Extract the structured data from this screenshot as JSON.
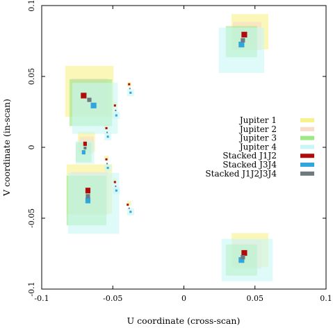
{
  "chart_data": {
    "type": "scatter",
    "title": "",
    "xlabel": "U coordinate (cross-scan)",
    "ylabel": "V coordinate (in-scan)",
    "xlim": [
      -0.1,
      0.1
    ],
    "ylim": [
      -0.1,
      0.1
    ],
    "xticks": [
      -0.1,
      -0.05,
      0,
      0.05,
      0.1
    ],
    "yticks": [
      -0.1,
      -0.05,
      0,
      0.05,
      0.1
    ],
    "xtick_labels": [
      "-0.1",
      "-0.05",
      "0",
      "0.05",
      "0.1"
    ],
    "ytick_labels": [
      "-0.1",
      "-0.05",
      "0",
      "0.05",
      "0.1"
    ],
    "grid": false,
    "legend_position": "right",
    "series": [
      {
        "name": "Jupiter 1",
        "color": "#f7f28c",
        "marker": "square-region",
        "points": [
          {
            "x": -0.0665,
            "y": 0.0395,
            "w": 0.034,
            "h": 0.036
          },
          {
            "x": -0.0685,
            "y": 0.004,
            "w": 0.012,
            "h": 0.014
          },
          {
            "x": -0.0665,
            "y": -0.0295,
            "w": 0.032,
            "h": 0.035
          },
          {
            "x": 0.0465,
            "y": 0.0815,
            "w": 0.026,
            "h": 0.025
          },
          {
            "x": 0.0465,
            "y": -0.0725,
            "w": 0.026,
            "h": 0.024
          },
          {
            "x": -0.0385,
            "y": 0.0445,
            "w": 0.003,
            "h": 0.003
          },
          {
            "x": -0.0485,
            "y": 0.0305,
            "w": 0.003,
            "h": 0.003
          },
          {
            "x": -0.0545,
            "y": 0.0145,
            "w": 0.003,
            "h": 0.003
          },
          {
            "x": -0.0545,
            "y": -0.0075,
            "w": 0.003,
            "h": 0.003
          },
          {
            "x": -0.0485,
            "y": -0.0235,
            "w": 0.003,
            "h": 0.003
          },
          {
            "x": -0.0385,
            "y": -0.0395,
            "w": 0.003,
            "h": 0.003
          }
        ]
      },
      {
        "name": "Jupiter 2",
        "color": "#f9dcc8",
        "marker": "square-region",
        "points": [
          {
            "x": -0.0665,
            "y": 0.0355,
            "w": 0.026,
            "h": 0.026
          },
          {
            "x": -0.0685,
            "y": 0.0015,
            "w": 0.01,
            "h": 0.012
          },
          {
            "x": -0.0665,
            "y": -0.0325,
            "w": 0.026,
            "h": 0.03
          },
          {
            "x": 0.0445,
            "y": 0.0785,
            "w": 0.02,
            "h": 0.02
          },
          {
            "x": 0.0445,
            "y": -0.0755,
            "w": 0.02,
            "h": 0.02
          }
        ]
      },
      {
        "name": "Jupiter 3",
        "color": "#9ee888",
        "marker": "square-region",
        "points": [
          {
            "x": -0.0655,
            "y": 0.0315,
            "w": 0.03,
            "h": 0.033
          },
          {
            "x": -0.0705,
            "y": -0.0035,
            "w": 0.011,
            "h": 0.014
          },
          {
            "x": -0.0685,
            "y": -0.0375,
            "w": 0.028,
            "h": 0.035
          },
          {
            "x": 0.0405,
            "y": 0.0745,
            "w": 0.022,
            "h": 0.022
          },
          {
            "x": 0.0405,
            "y": -0.0795,
            "w": 0.022,
            "h": 0.022
          }
        ]
      },
      {
        "name": "Jupiter 4",
        "color": "#c9f7f5",
        "marker": "square-region",
        "points": [
          {
            "x": -0.0625,
            "y": 0.0275,
            "w": 0.032,
            "h": 0.036
          },
          {
            "x": -0.0695,
            "y": -0.0035,
            "w": 0.013,
            "h": 0.016
          },
          {
            "x": -0.0635,
            "y": -0.0395,
            "w": 0.036,
            "h": 0.043
          },
          {
            "x": 0.0405,
            "y": 0.0685,
            "w": 0.032,
            "h": 0.032
          },
          {
            "x": 0.0445,
            "y": -0.0795,
            "w": 0.036,
            "h": 0.03
          },
          {
            "x": -0.0375,
            "y": 0.0385,
            "w": 0.005,
            "h": 0.005
          },
          {
            "x": -0.0475,
            "y": 0.0225,
            "w": 0.005,
            "h": 0.005
          },
          {
            "x": -0.0535,
            "y": 0.0075,
            "w": 0.005,
            "h": 0.005
          },
          {
            "x": -0.0535,
            "y": -0.0145,
            "w": 0.005,
            "h": 0.005
          },
          {
            "x": -0.0475,
            "y": -0.0305,
            "w": 0.005,
            "h": 0.005
          },
          {
            "x": -0.0375,
            "y": -0.0455,
            "w": 0.005,
            "h": 0.005
          }
        ]
      },
      {
        "name": "Stacked J1J2",
        "color": "#b00c0c",
        "marker": "square",
        "points": [
          {
            "x": -0.0705,
            "y": 0.0365,
            "w": 0.004,
            "h": 0.004
          },
          {
            "x": -0.0695,
            "y": 0.0025,
            "w": 0.0025,
            "h": 0.003
          },
          {
            "x": -0.0675,
            "y": -0.0305,
            "w": 0.0035,
            "h": 0.004
          },
          {
            "x": 0.0425,
            "y": 0.0795,
            "w": 0.004,
            "h": 0.004
          },
          {
            "x": 0.0425,
            "y": -0.0745,
            "w": 0.004,
            "h": 0.004
          },
          {
            "x": -0.0385,
            "y": 0.0445,
            "w": 0.0015,
            "h": 0.0015
          },
          {
            "x": -0.0485,
            "y": 0.0295,
            "w": 0.0015,
            "h": 0.0015
          },
          {
            "x": -0.0545,
            "y": 0.0135,
            "w": 0.0015,
            "h": 0.0015
          },
          {
            "x": -0.0545,
            "y": -0.0085,
            "w": 0.0015,
            "h": 0.0015
          },
          {
            "x": -0.0485,
            "y": -0.0245,
            "w": 0.0015,
            "h": 0.0015
          },
          {
            "x": -0.0395,
            "y": -0.0405,
            "w": 0.0015,
            "h": 0.0015
          }
        ]
      },
      {
        "name": "Stacked J3J4",
        "color": "#31a6dc",
        "marker": "square",
        "points": [
          {
            "x": -0.0635,
            "y": 0.0295,
            "w": 0.004,
            "h": 0.004
          },
          {
            "x": -0.0705,
            "y": -0.0035,
            "w": 0.0025,
            "h": 0.003
          },
          {
            "x": -0.0675,
            "y": -0.0375,
            "w": 0.0035,
            "h": 0.004
          },
          {
            "x": 0.0405,
            "y": 0.0725,
            "w": 0.004,
            "h": 0.004
          },
          {
            "x": 0.0405,
            "y": -0.0795,
            "w": 0.004,
            "h": 0.004
          },
          {
            "x": -0.0375,
            "y": 0.0385,
            "w": 0.0015,
            "h": 0.0015
          },
          {
            "x": -0.0475,
            "y": 0.0225,
            "w": 0.0015,
            "h": 0.0015
          },
          {
            "x": -0.0535,
            "y": 0.0075,
            "w": 0.0015,
            "h": 0.0015
          },
          {
            "x": -0.0535,
            "y": -0.0145,
            "w": 0.0015,
            "h": 0.0015
          },
          {
            "x": -0.0475,
            "y": -0.0305,
            "w": 0.0015,
            "h": 0.0015
          },
          {
            "x": -0.0375,
            "y": -0.0455,
            "w": 0.0015,
            "h": 0.0015
          }
        ]
      },
      {
        "name": "Stacked J1J2J3J4",
        "color": "#6e7a80",
        "marker": "square",
        "points": [
          {
            "x": -0.0665,
            "y": 0.0335,
            "w": 0.003,
            "h": 0.003
          },
          {
            "x": -0.0695,
            "y": -0.0005,
            "w": 0.002,
            "h": 0.002
          },
          {
            "x": -0.0675,
            "y": -0.0345,
            "w": 0.003,
            "h": 0.003
          },
          {
            "x": 0.0415,
            "y": 0.0755,
            "w": 0.003,
            "h": 0.003
          },
          {
            "x": 0.0415,
            "y": -0.0775,
            "w": 0.003,
            "h": 0.003
          },
          {
            "x": -0.038,
            "y": 0.0415,
            "w": 0.001,
            "h": 0.001
          },
          {
            "x": -0.048,
            "y": 0.026,
            "w": 0.001,
            "h": 0.001
          },
          {
            "x": -0.054,
            "y": 0.0105,
            "w": 0.001,
            "h": 0.001
          },
          {
            "x": -0.054,
            "y": -0.0115,
            "w": 0.001,
            "h": 0.001
          },
          {
            "x": -0.048,
            "y": -0.0275,
            "w": 0.001,
            "h": 0.001
          },
          {
            "x": -0.0385,
            "y": -0.043,
            "w": 0.001,
            "h": 0.001
          }
        ]
      }
    ]
  }
}
